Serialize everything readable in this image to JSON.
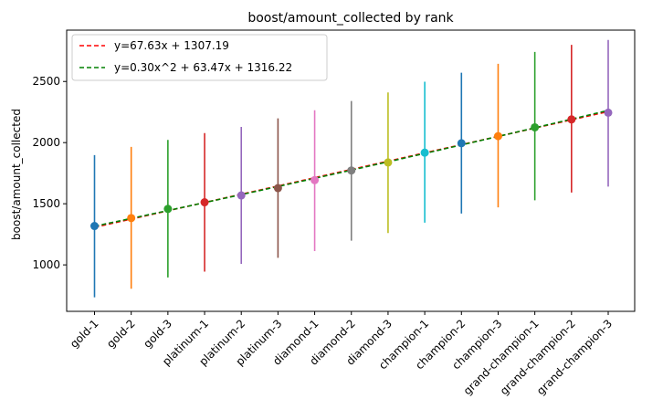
{
  "chart_data": {
    "type": "scatter",
    "title": "boost/amount_collected by rank",
    "xlabel": "",
    "ylabel": "boost/amount_collected",
    "categories": [
      "gold-1",
      "gold-2",
      "gold-3",
      "platinum-1",
      "platinum-2",
      "platinum-3",
      "diamond-1",
      "diamond-2",
      "diamond-3",
      "champion-1",
      "champion-2",
      "champion-3",
      "grand-champion-1",
      "grand-champion-2",
      "grand-champion-3"
    ],
    "means": [
      1318,
      1383,
      1458,
      1512,
      1568,
      1628,
      1693,
      1772,
      1838,
      1918,
      1995,
      2053,
      2125,
      2190,
      2245
    ],
    "err_low": [
      735,
      805,
      897,
      945,
      1008,
      1058,
      1113,
      1198,
      1260,
      1345,
      1420,
      1470,
      1528,
      1592,
      1640
    ],
    "err_high": [
      1898,
      1965,
      2022,
      2078,
      2128,
      2198,
      2265,
      2340,
      2410,
      2498,
      2572,
      2645,
      2742,
      2800,
      2840
    ],
    "colors": [
      "#1f77b4",
      "#ff7f0e",
      "#2ca02c",
      "#d62728",
      "#9467bd",
      "#8c564b",
      "#e377c2",
      "#7f7f7f",
      "#bcbd22",
      "#17becf",
      "#1f77b4",
      "#ff7f0e",
      "#2ca02c",
      "#d62728",
      "#9467bd"
    ],
    "yticks": [
      1000,
      1500,
      2000,
      2500
    ],
    "ylim": [
      620,
      2920
    ],
    "grid": false,
    "legend_position": "top-left",
    "fits": [
      {
        "name": "y=67.63x + 1307.19",
        "color": "#ff0000",
        "coef": [
          0,
          67.63,
          1307.19
        ]
      },
      {
        "name": "y=0.30x^2 + 63.47x + 1316.22",
        "color": "#008000",
        "coef": [
          0.3,
          63.47,
          1316.22
        ]
      }
    ]
  }
}
